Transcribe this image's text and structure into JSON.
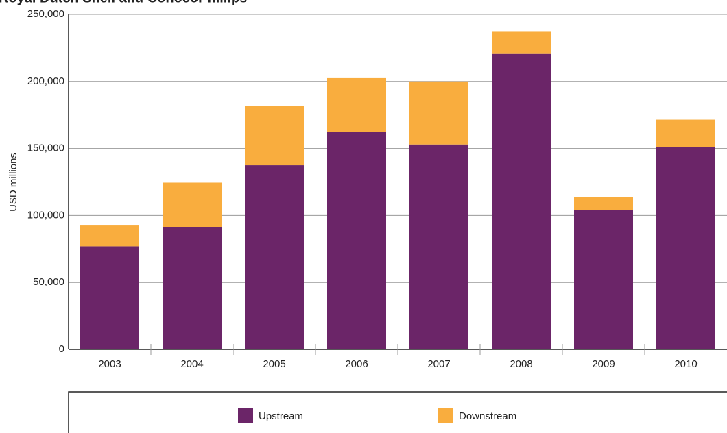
{
  "chart_data": {
    "type": "bar",
    "stacked": true,
    "title": "Royal Dutch Shell and ConocoPhillips",
    "y_label": "USD millions",
    "categories": [
      "2003",
      "2004",
      "2005",
      "2006",
      "2007",
      "2008",
      "2009",
      "2010"
    ],
    "series": [
      {
        "name": "Upstream",
        "color": "#6b2568",
        "values": [
          77000,
          91500,
          137500,
          162500,
          153000,
          220500,
          104000,
          151000
        ]
      },
      {
        "name": "Downstream",
        "color": "#f9ad3e",
        "values": [
          15500,
          33000,
          44000,
          40000,
          47000,
          17000,
          9500,
          20500
        ]
      }
    ],
    "ylim": [
      0,
      250000
    ],
    "yticks": [
      0,
      {
        "value": 50000,
        "label": "50,000"
      },
      {
        "value": 100000,
        "label": "100,000"
      },
      {
        "value": 150000,
        "label": "150,000"
      },
      {
        "value": 200000,
        "label": "200,000"
      },
      {
        "value": 250000,
        "label": "250,000"
      }
    ],
    "grid": true
  }
}
